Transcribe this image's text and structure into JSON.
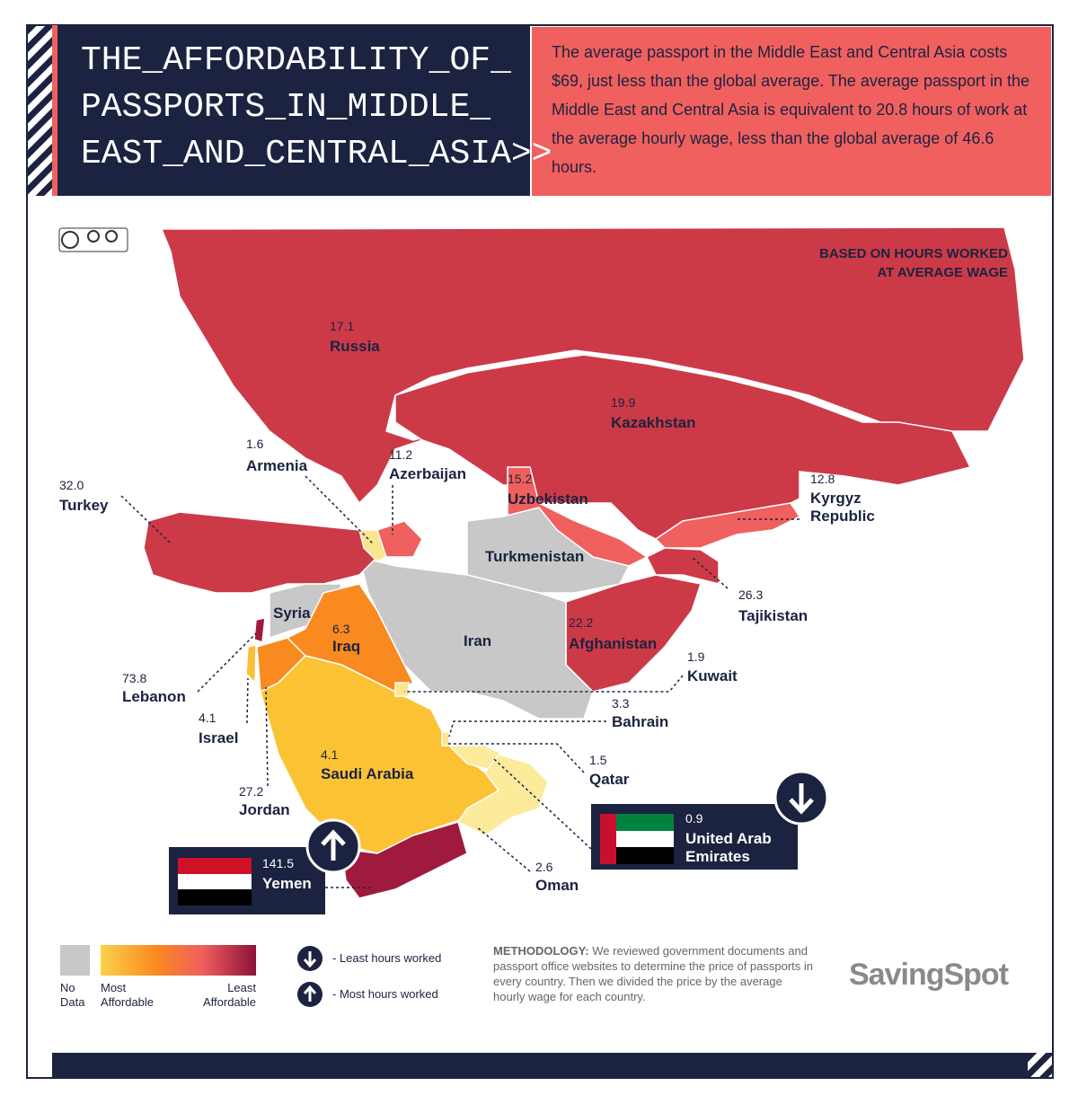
{
  "header": {
    "title": "THE_AFFORDABILITY_OF_\nPASSPORTS_IN_MIDDLE_\nEAST_AND_CENTRAL_ASIA>>",
    "description": "The average passport in the Middle East and Central Asia costs $69, just less than the global average. The average passport in the Middle East and Central Asia is equivalent to 20.8 hours of work at the average hourly wage, less than the global average of 46.6 hours."
  },
  "note": "BASED ON HOURS WORKED\nAT AVERAGE WAGE",
  "countries": [
    {
      "name": "Russia",
      "value": "17.1"
    },
    {
      "name": "Kazakhstan",
      "value": "19.9"
    },
    {
      "name": "Armenia",
      "value": "1.6"
    },
    {
      "name": "Azerbaijan",
      "value": "11.2"
    },
    {
      "name": "Uzbekistan",
      "value": "15.2"
    },
    {
      "name": "Turkey",
      "value": "32.0"
    },
    {
      "name": "Kyrgyz Republic",
      "value": "12.8"
    },
    {
      "name": "Turkmenistan"
    },
    {
      "name": "Tajikistan",
      "value": "26.3"
    },
    {
      "name": "Syria"
    },
    {
      "name": "Iran"
    },
    {
      "name": "Iraq",
      "value": "6.3"
    },
    {
      "name": "Afghanistan",
      "value": "22.2"
    },
    {
      "name": "Kuwait",
      "value": "1.9"
    },
    {
      "name": "Lebanon",
      "value": "73.8"
    },
    {
      "name": "Bahrain",
      "value": "3.3"
    },
    {
      "name": "Israel",
      "value": "4.1"
    },
    {
      "name": "Qatar",
      "value": "1.5"
    },
    {
      "name": "Saudi Arabia",
      "value": "4.1"
    },
    {
      "name": "Jordan",
      "value": "27.2"
    },
    {
      "name": "United Arab Emirates",
      "value": "0.9"
    },
    {
      "name": "Yemen",
      "value": "141.5"
    },
    {
      "name": "Oman",
      "value": "2.6"
    }
  ],
  "legend": {
    "no_data": "No Data",
    "most": "Most Affordable",
    "least": "Least Affordable",
    "least_hours": "-  Least hours worked",
    "most_hours": "-  Most hours worked"
  },
  "methodology": {
    "label": "METHODOLOGY:",
    "text": "We reviewed government documents and passport office websites to determine the price of passports in every country. Then we divided the price by the average hourly wage for each country."
  },
  "brand": "SavingSpot"
}
